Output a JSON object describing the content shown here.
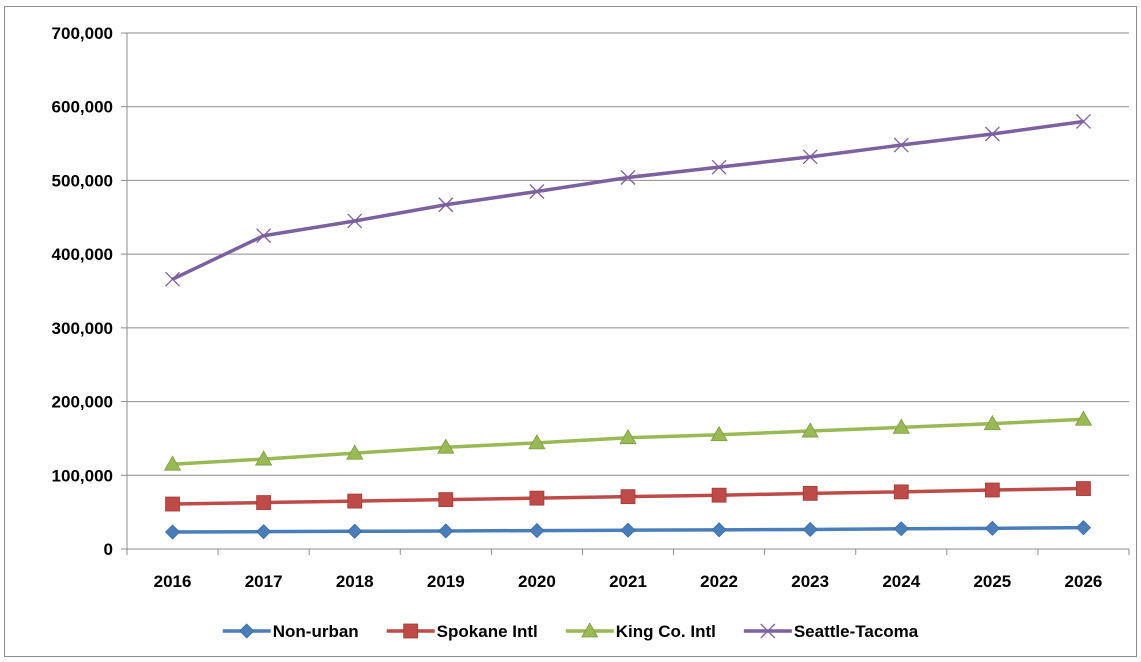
{
  "chart_data": {
    "type": "line",
    "title": "",
    "xlabel": "",
    "ylabel": "",
    "categories": [
      "2016",
      "2017",
      "2018",
      "2019",
      "2020",
      "2021",
      "2022",
      "2023",
      "2024",
      "2025",
      "2026"
    ],
    "ylim": [
      0,
      700000
    ],
    "yticks": [
      "0",
      "100,000",
      "200,000",
      "300,000",
      "400,000",
      "500,000",
      "600,000",
      "700,000"
    ],
    "grid": true,
    "legend_position": "bottom",
    "series": [
      {
        "name": "Non-urban",
        "color": "#4a7ebb",
        "marker": "diamond",
        "values": [
          23000,
          23500,
          24000,
          24500,
          25000,
          25500,
          26000,
          26500,
          27500,
          28000,
          29000
        ]
      },
      {
        "name": "Spokane Intl",
        "color": "#be4b48",
        "marker": "square",
        "values": [
          61000,
          63000,
          65000,
          67000,
          69000,
          71000,
          73000,
          75500,
          77500,
          80000,
          82000
        ]
      },
      {
        "name": "King Co. Intl",
        "color": "#98b954",
        "marker": "triangle",
        "values": [
          115000,
          122000,
          130000,
          138000,
          144000,
          151000,
          155000,
          160000,
          165000,
          170000,
          176000
        ]
      },
      {
        "name": "Seattle-Tacoma",
        "color": "#7d60a0",
        "marker": "x",
        "values": [
          366000,
          425000,
          445000,
          467000,
          485000,
          504000,
          518000,
          532000,
          548000,
          563000,
          580000
        ]
      }
    ]
  }
}
